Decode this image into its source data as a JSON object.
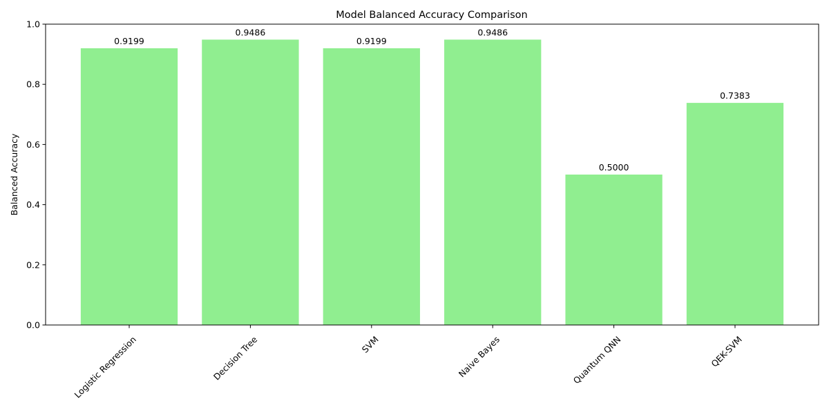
{
  "chart_data": {
    "type": "bar",
    "title": "Model Balanced Accuracy Comparison",
    "xlabel": "",
    "ylabel": "Balanced Accuracy",
    "categories": [
      "Logistic Regression",
      "Decision Tree",
      "SVM",
      "Naive Bayes",
      "Quantum QNN",
      "QEK-SVM"
    ],
    "values": [
      0.9199,
      0.9486,
      0.9199,
      0.9486,
      0.5,
      0.7383
    ],
    "value_labels": [
      "0.9199",
      "0.9486",
      "0.9199",
      "0.9486",
      "0.5000",
      "0.7383"
    ],
    "ylim": [
      0,
      1.0
    ],
    "yticks": [
      0.0,
      0.2,
      0.4,
      0.6,
      0.8,
      1.0
    ],
    "ytick_labels": [
      "0.0",
      "0.2",
      "0.4",
      "0.6",
      "0.8",
      "1.0"
    ],
    "grid": false,
    "legend": "none",
    "bar_color": "#90ee90",
    "xtick_rotation_deg": 45
  }
}
